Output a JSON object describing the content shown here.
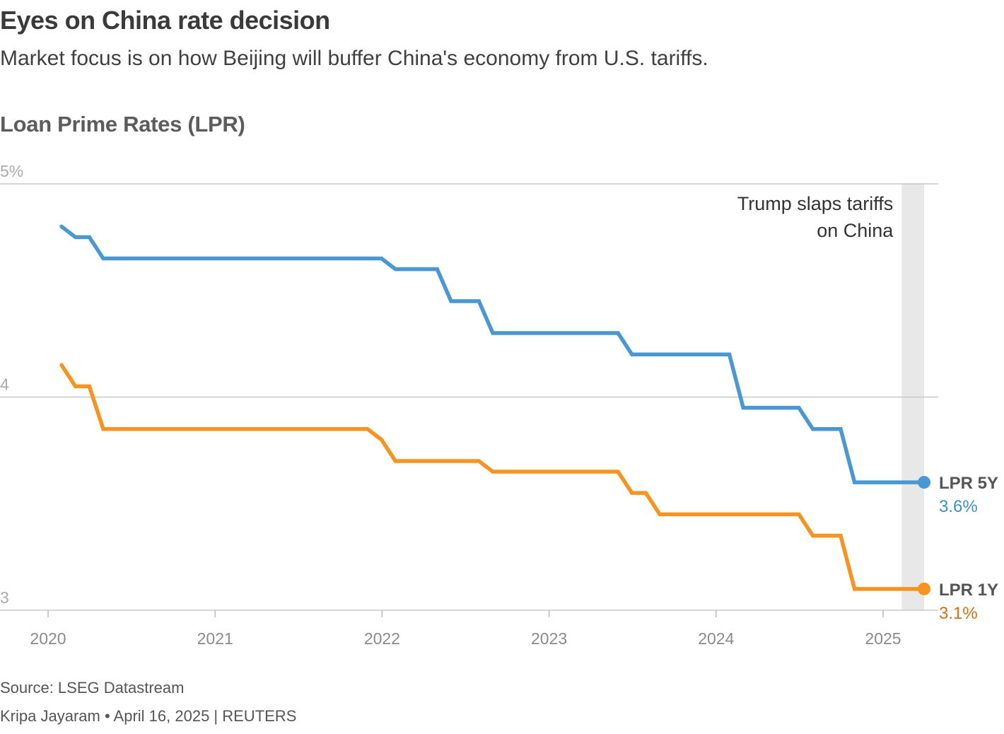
{
  "header": {
    "title": "Eyes on China rate decision",
    "subtitle": "Market focus is on how Beijing will buffer China's economy from U.S. tariffs."
  },
  "footer": {
    "source": "Source: LSEG Datastream",
    "byline": "Kripa Jayaram • April 16, 2025 | REUTERS"
  },
  "chart_data": {
    "type": "line",
    "title": "Loan Prime Rates (LPR)",
    "xlabel": "",
    "ylabel": "",
    "x_unit": "month",
    "x_start": "2020-01",
    "x_end": "2025-03",
    "x_ticks": [
      "2020",
      "2021",
      "2022",
      "2023",
      "2024",
      "2025"
    ],
    "y_ticks": [
      {
        "value": 5,
        "label": "5%"
      },
      {
        "value": 4,
        "label": "4"
      },
      {
        "value": 3,
        "label": "3"
      }
    ],
    "ylim": [
      3,
      5
    ],
    "grid": true,
    "x": [
      "2020-01",
      "2020-02",
      "2020-03",
      "2020-04",
      "2020-05",
      "2020-06",
      "2020-07",
      "2020-08",
      "2020-09",
      "2020-10",
      "2020-11",
      "2020-12",
      "2021-01",
      "2021-02",
      "2021-03",
      "2021-04",
      "2021-05",
      "2021-06",
      "2021-07",
      "2021-08",
      "2021-09",
      "2021-10",
      "2021-11",
      "2021-12",
      "2022-01",
      "2022-02",
      "2022-03",
      "2022-04",
      "2022-05",
      "2022-06",
      "2022-07",
      "2022-08",
      "2022-09",
      "2022-10",
      "2022-11",
      "2022-12",
      "2023-01",
      "2023-02",
      "2023-03",
      "2023-04",
      "2023-05",
      "2023-06",
      "2023-07",
      "2023-08",
      "2023-09",
      "2023-10",
      "2023-11",
      "2023-12",
      "2024-01",
      "2024-02",
      "2024-03",
      "2024-04",
      "2024-05",
      "2024-06",
      "2024-07",
      "2024-08",
      "2024-09",
      "2024-10",
      "2024-11",
      "2024-12",
      "2025-01",
      "2025-02",
      "2025-03"
    ],
    "series": [
      {
        "name": "LPR 5Y",
        "color": "#4a98d3",
        "label_color": "#3f8fcc",
        "end_label": "3.6%",
        "values": [
          4.8,
          4.75,
          4.75,
          4.65,
          4.65,
          4.65,
          4.65,
          4.65,
          4.65,
          4.65,
          4.65,
          4.65,
          4.65,
          4.65,
          4.65,
          4.65,
          4.65,
          4.65,
          4.65,
          4.65,
          4.65,
          4.65,
          4.65,
          4.65,
          4.6,
          4.6,
          4.6,
          4.6,
          4.45,
          4.45,
          4.45,
          4.3,
          4.3,
          4.3,
          4.3,
          4.3,
          4.3,
          4.3,
          4.3,
          4.3,
          4.3,
          4.2,
          4.2,
          4.2,
          4.2,
          4.2,
          4.2,
          4.2,
          4.2,
          3.95,
          3.95,
          3.95,
          3.95,
          3.95,
          3.85,
          3.85,
          3.85,
          3.6,
          3.6,
          3.6,
          3.6,
          3.6,
          3.6
        ]
      },
      {
        "name": "LPR 1Y",
        "color": "#f7931e",
        "label_color": "#d4700f",
        "end_label": "3.1%",
        "values": [
          4.15,
          4.05,
          4.05,
          3.85,
          3.85,
          3.85,
          3.85,
          3.85,
          3.85,
          3.85,
          3.85,
          3.85,
          3.85,
          3.85,
          3.85,
          3.85,
          3.85,
          3.85,
          3.85,
          3.85,
          3.85,
          3.85,
          3.85,
          3.8,
          3.7,
          3.7,
          3.7,
          3.7,
          3.7,
          3.7,
          3.7,
          3.65,
          3.65,
          3.65,
          3.65,
          3.65,
          3.65,
          3.65,
          3.65,
          3.65,
          3.65,
          3.55,
          3.55,
          3.45,
          3.45,
          3.45,
          3.45,
          3.45,
          3.45,
          3.45,
          3.45,
          3.45,
          3.45,
          3.45,
          3.35,
          3.35,
          3.35,
          3.1,
          3.1,
          3.1,
          3.1,
          3.1,
          3.1
        ]
      }
    ],
    "annotations": [
      {
        "text_lines": [
          "Trump slaps tariffs",
          "on China"
        ],
        "shaded_from": "2025-02",
        "shaded_to": "2025-03",
        "shade_color": "#e8e8e8"
      }
    ],
    "legend": "inline-end-labels"
  }
}
